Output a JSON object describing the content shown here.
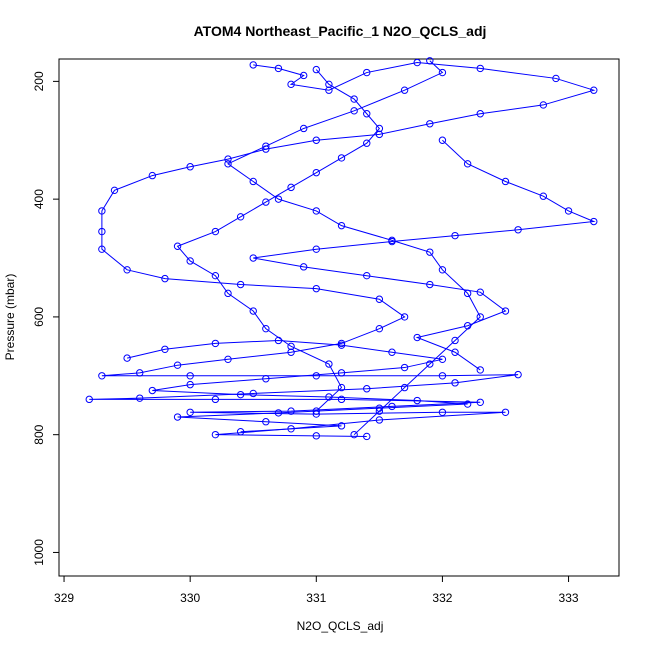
{
  "chart_data": {
    "type": "line",
    "title": "ATOM4 Northeast_Pacific_1 N2O_QCLS_adj",
    "xlabel": "N2O_QCLS_adj",
    "ylabel": "Pressure (mbar)",
    "xlim": [
      328.96,
      333.4
    ],
    "ylim": [
      1040,
      162
    ],
    "y_inverted": true,
    "x_ticks": [
      329,
      330,
      331,
      332,
      333
    ],
    "y_ticks": [
      200,
      400,
      600,
      800,
      1000
    ],
    "grid": false,
    "legend": "none",
    "series": [
      {
        "style": "line+open-circle",
        "color": "#0000ff",
        "points": [
          [
            330.5,
            172
          ],
          [
            330.7,
            178
          ],
          [
            330.9,
            190
          ],
          [
            330.8,
            205
          ],
          [
            331.1,
            215
          ],
          [
            331.4,
            185
          ],
          [
            331.8,
            168
          ],
          [
            332.3,
            178
          ],
          [
            332.9,
            195
          ],
          [
            333.2,
            215
          ],
          [
            332.8,
            240
          ],
          [
            332.3,
            255
          ],
          [
            331.9,
            272
          ],
          [
            331.5,
            290
          ],
          [
            331.0,
            300
          ],
          [
            330.6,
            315
          ],
          [
            330.3,
            332
          ],
          [
            330.0,
            345
          ],
          [
            329.7,
            360
          ],
          [
            329.4,
            385
          ],
          [
            329.3,
            420
          ],
          [
            329.3,
            455
          ],
          [
            329.3,
            485
          ],
          [
            329.5,
            520
          ],
          [
            329.8,
            535
          ],
          [
            330.4,
            545
          ],
          [
            331.0,
            552
          ],
          [
            331.5,
            570
          ],
          [
            331.7,
            600
          ],
          [
            331.5,
            620
          ],
          [
            331.2,
            645
          ],
          [
            330.8,
            660
          ],
          [
            330.3,
            672
          ],
          [
            329.9,
            682
          ],
          [
            329.6,
            695
          ],
          [
            329.3,
            700
          ],
          [
            330.0,
            700
          ],
          [
            331.0,
            700
          ],
          [
            332.0,
            700
          ],
          [
            332.6,
            698
          ],
          [
            332.1,
            712
          ],
          [
            331.4,
            722
          ],
          [
            330.5,
            730
          ],
          [
            329.6,
            738
          ],
          [
            329.2,
            740
          ],
          [
            330.2,
            740
          ],
          [
            331.2,
            740
          ],
          [
            332.3,
            745
          ],
          [
            331.6,
            752
          ],
          [
            330.8,
            760
          ],
          [
            330.0,
            762
          ],
          [
            331.0,
            765
          ],
          [
            332.0,
            762
          ],
          [
            332.5,
            762
          ],
          [
            331.5,
            775
          ],
          [
            330.8,
            790
          ],
          [
            330.2,
            800
          ],
          [
            331.0,
            802
          ],
          [
            331.4,
            803
          ]
        ]
      },
      {
        "style": "line+open-circle",
        "color": "#0000ff",
        "points": [
          [
            331.3,
            800
          ],
          [
            331.5,
            760
          ],
          [
            331.7,
            720
          ],
          [
            331.9,
            680
          ],
          [
            332.1,
            640
          ],
          [
            332.3,
            600
          ],
          [
            332.2,
            560
          ],
          [
            332.0,
            520
          ],
          [
            331.9,
            490
          ],
          [
            331.6,
            470
          ],
          [
            331.2,
            445
          ],
          [
            331.0,
            420
          ],
          [
            330.7,
            400
          ],
          [
            330.5,
            370
          ],
          [
            330.3,
            340
          ],
          [
            330.6,
            310
          ],
          [
            330.9,
            280
          ],
          [
            331.3,
            250
          ],
          [
            331.7,
            215
          ],
          [
            332.0,
            185
          ],
          [
            331.9,
            165
          ]
        ]
      },
      {
        "style": "line+open-circle",
        "color": "#0000ff",
        "points": [
          [
            331.0,
            760
          ],
          [
            331.2,
            720
          ],
          [
            331.1,
            680
          ],
          [
            330.8,
            650
          ],
          [
            330.6,
            620
          ],
          [
            330.5,
            590
          ],
          [
            330.3,
            560
          ],
          [
            330.2,
            530
          ],
          [
            330.0,
            505
          ],
          [
            329.9,
            480
          ],
          [
            330.2,
            455
          ],
          [
            330.4,
            430
          ],
          [
            330.6,
            405
          ],
          [
            330.8,
            380
          ],
          [
            331.0,
            355
          ],
          [
            331.2,
            330
          ],
          [
            331.4,
            305
          ],
          [
            331.5,
            280
          ],
          [
            331.4,
            255
          ],
          [
            331.3,
            230
          ],
          [
            331.1,
            205
          ],
          [
            331.0,
            180
          ]
        ]
      },
      {
        "style": "line+open-circle",
        "color": "#0000ff",
        "points": [
          [
            332.0,
            300
          ],
          [
            332.2,
            340
          ],
          [
            332.5,
            370
          ],
          [
            332.8,
            395
          ],
          [
            333.0,
            420
          ],
          [
            333.2,
            438
          ],
          [
            332.6,
            452
          ],
          [
            332.1,
            462
          ],
          [
            331.6,
            472
          ],
          [
            331.0,
            485
          ],
          [
            330.5,
            500
          ],
          [
            330.9,
            515
          ],
          [
            331.4,
            530
          ],
          [
            331.9,
            545
          ],
          [
            332.3,
            558
          ],
          [
            332.5,
            590
          ],
          [
            332.2,
            615
          ],
          [
            331.8,
            635
          ],
          [
            332.1,
            660
          ],
          [
            332.3,
            690
          ]
        ]
      },
      {
        "style": "line+open-circle",
        "color": "#0000ff",
        "points": [
          [
            329.5,
            670
          ],
          [
            329.8,
            655
          ],
          [
            330.2,
            645
          ],
          [
            330.7,
            640
          ],
          [
            331.2,
            648
          ],
          [
            331.6,
            660
          ],
          [
            332.0,
            672
          ],
          [
            331.7,
            686
          ],
          [
            331.2,
            695
          ],
          [
            330.6,
            705
          ],
          [
            330.0,
            715
          ],
          [
            329.7,
            725
          ],
          [
            330.4,
            732
          ],
          [
            331.1,
            736
          ],
          [
            331.8,
            742
          ],
          [
            332.2,
            748
          ],
          [
            331.5,
            755
          ],
          [
            330.7,
            763
          ],
          [
            329.9,
            770
          ],
          [
            330.6,
            778
          ],
          [
            331.2,
            785
          ],
          [
            330.4,
            795
          ]
        ]
      }
    ]
  }
}
